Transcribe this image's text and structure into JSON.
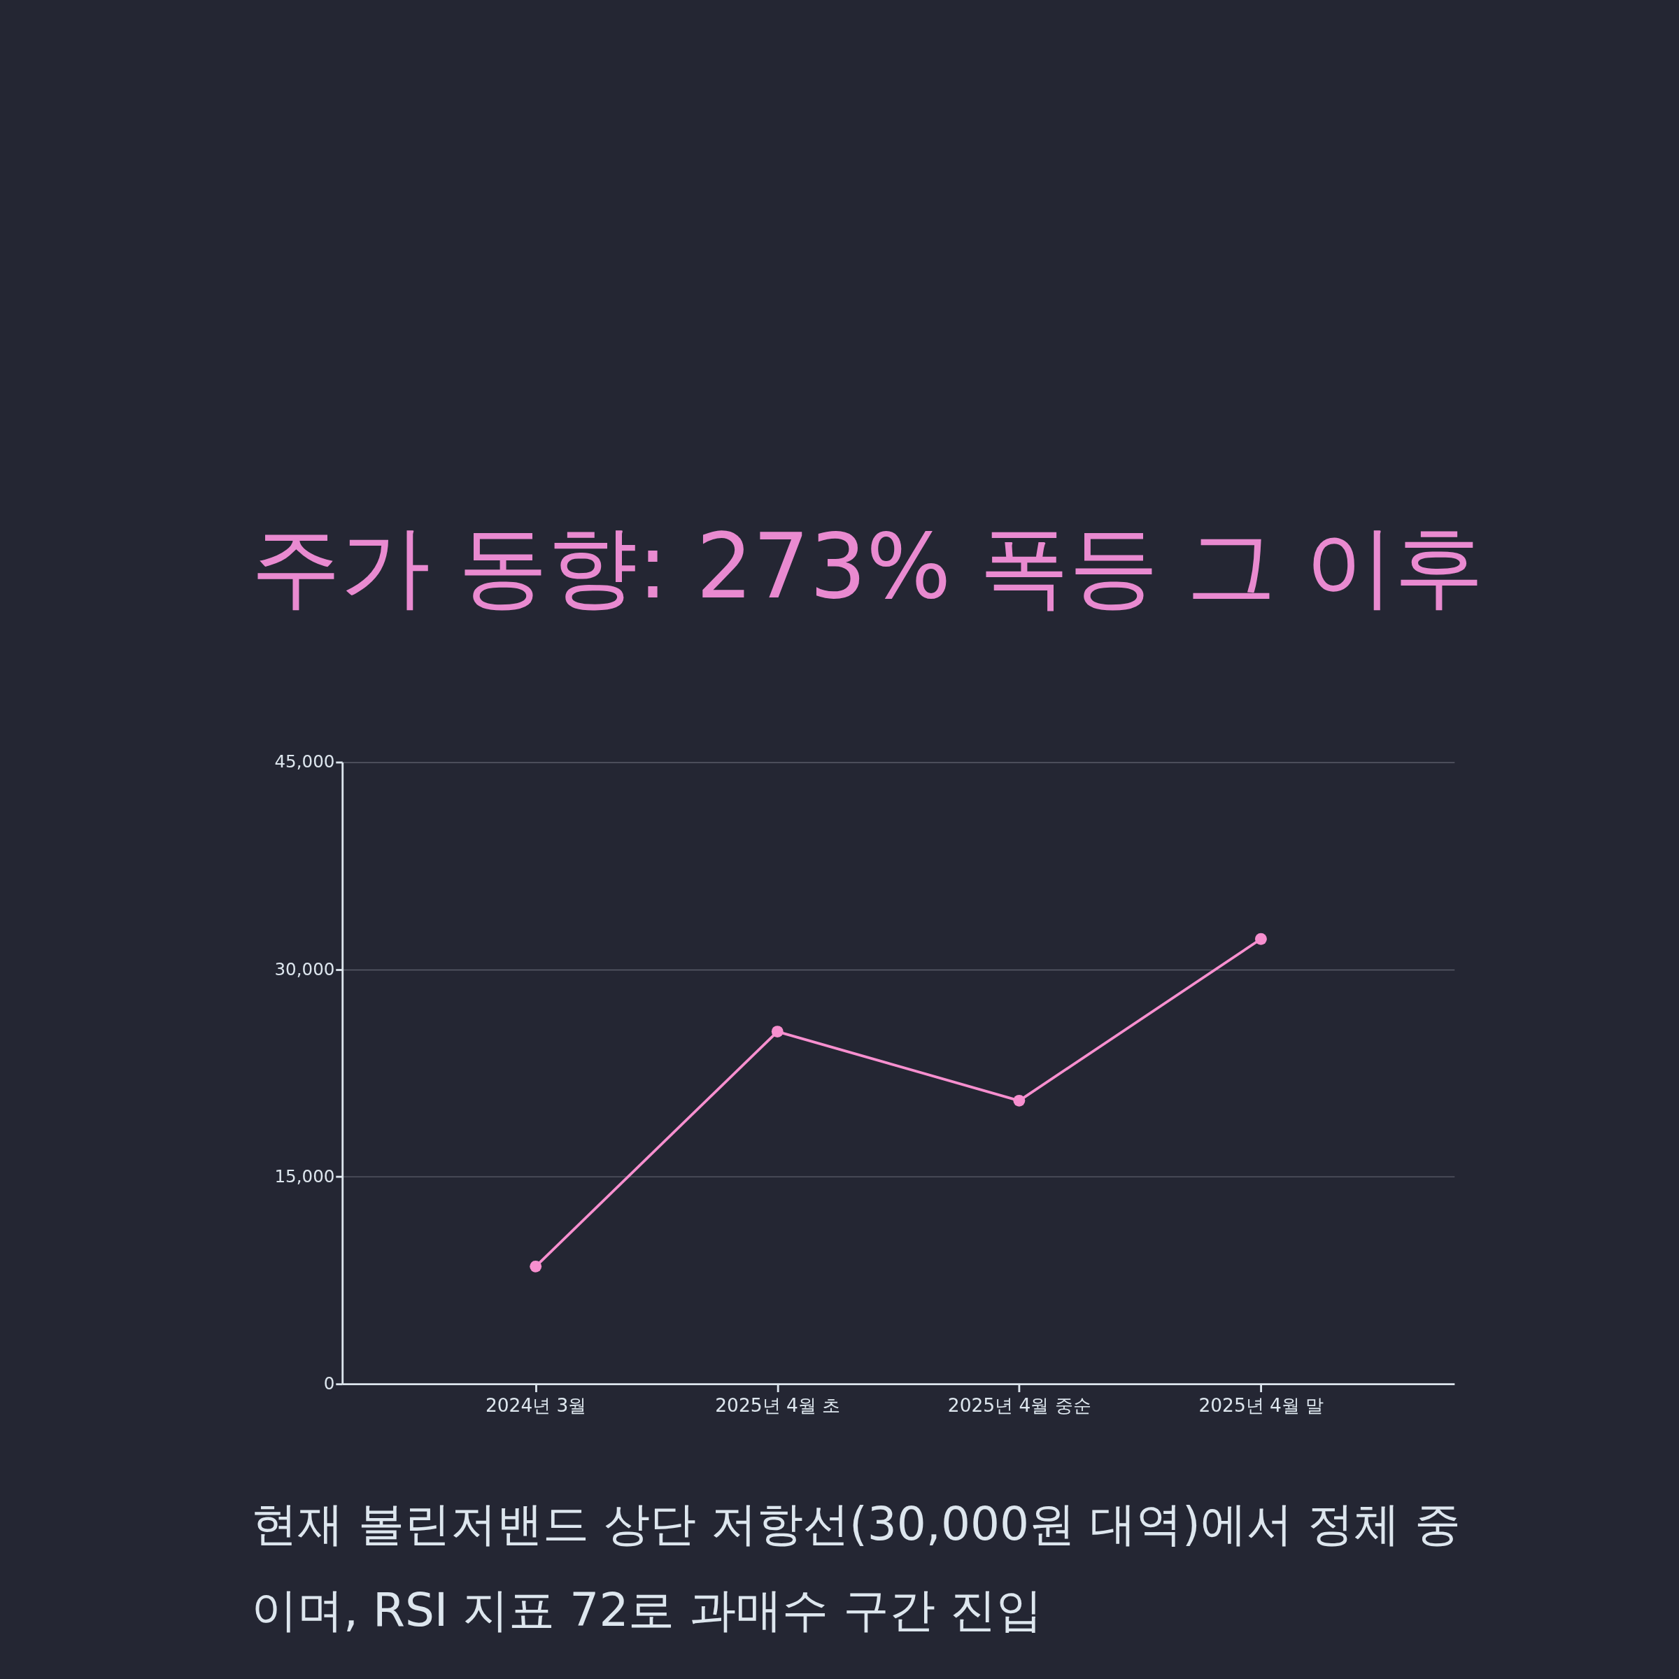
{
  "chart_data": {
    "type": "line",
    "title": "주가 동향: 273% 폭등 그 이후",
    "categories": [
      "2024년 3월",
      "2025년 4월 초",
      "2025년 4월 중순",
      "2025년 4월 말"
    ],
    "series": [
      {
        "color": "#f78fcf",
        "values": [
          8500,
          25500,
          20500,
          32200
        ]
      }
    ],
    "ylim": [
      0,
      45000
    ],
    "yticks": [
      {
        "value": 0,
        "label": "0"
      },
      {
        "value": 15000,
        "label": "15,000"
      },
      {
        "value": 30000,
        "label": "30,000"
      },
      {
        "value": 45000,
        "label": "45,000"
      }
    ],
    "grid": "y",
    "marker": "circle",
    "line_style": "solid",
    "legend": false,
    "annotations": [
      "현재 볼린저밴드 상단 저항선(30,000원 대역)에서 정체 중",
      "이며, RSI 지표 72로 과매수 구간 진입"
    ]
  }
}
